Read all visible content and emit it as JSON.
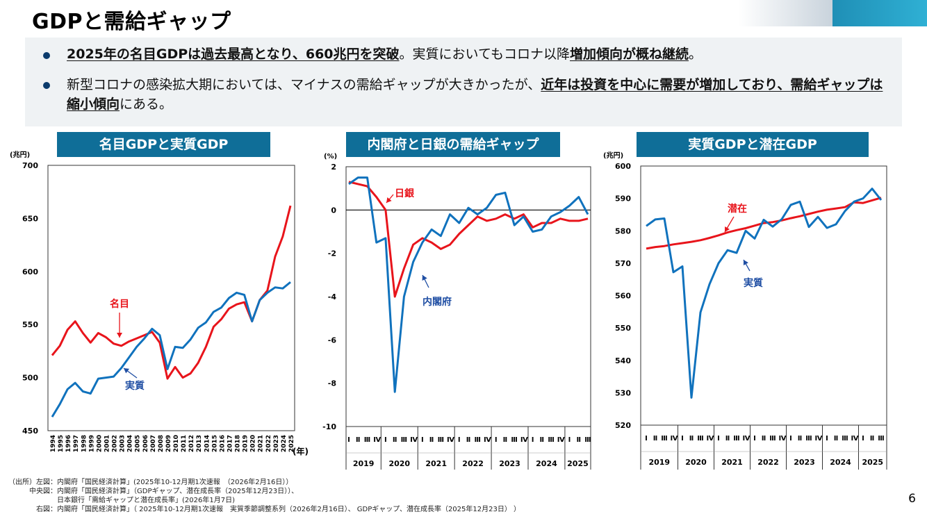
{
  "page": {
    "title": "GDPと需給ギャップ",
    "page_number": "6",
    "bullets": [
      {
        "strong1": "2025年の名目GDPは過去最高となり、660兆円を突破",
        "mid": "。実質においてもコロナ以降",
        "strong2": "増加傾向が概ね継続",
        "end": "。"
      },
      {
        "lead": "新型コロナの感染拡大期においては、マイナスの需給ギャップが大きかったが、",
        "strong": "近年は投資を中心に需要が増加しており、需給ギャップは縮小傾向",
        "end": "にある。"
      }
    ],
    "sources": [
      "（出所）左図：内閣府「国民経済計算」(2025年10-12月期1次速報　（2026年2月16日））",
      "　　　中央図：内閣府「国民経済計算」（GDPギャップ、潜在成長率（2025年12月23日））、",
      "　　　　　　　日本銀行「需給ギャップと潜在成長率」(2026年1月7日)",
      "　　　　右図：内閣府「国民経済計算」（ 2025年10-12月期1次速報　実質季節調整系列（2026年2月16日）、 GDPギャップ、潜在成長率（2025年12月23日） ）"
    ]
  },
  "colors": {
    "nominal": "#e8141b",
    "real": "#1072bd",
    "title_bg": "#0f6e98",
    "annot": "#1f4ea3"
  },
  "chart_data": [
    {
      "type": "line",
      "title": "名目GDPと実質GDP",
      "ylabel": "(兆円)",
      "xlabel": "(年)",
      "ylim": [
        450,
        700
      ],
      "yticks": [
        450,
        500,
        550,
        600,
        650,
        700
      ],
      "x": [
        "1994",
        "1995",
        "1996",
        "1997",
        "1998",
        "1999",
        "2000",
        "2001",
        "2002",
        "2003",
        "2004",
        "2005",
        "2006",
        "2007",
        "2008",
        "2009",
        "2010",
        "2011",
        "2012",
        "2013",
        "2014",
        "2015",
        "2016",
        "2017",
        "2018",
        "2019",
        "2020",
        "2021",
        "2022",
        "2023",
        "2024",
        "2025"
      ],
      "series": [
        {
          "name": "名目",
          "color_key": "nominal",
          "values": [
            521,
            530,
            545,
            553,
            542,
            533,
            542,
            538,
            532,
            530,
            534,
            537,
            540,
            543,
            533,
            499,
            510,
            500,
            504,
            514,
            529,
            548,
            555,
            565,
            569,
            571,
            553,
            573,
            582,
            614,
            633,
            662
          ]
        },
        {
          "name": "実質",
          "color_key": "real",
          "values": [
            463,
            475,
            489,
            495,
            487,
            485,
            499,
            500,
            501,
            509,
            519,
            529,
            537,
            546,
            540,
            508,
            529,
            528,
            536,
            547,
            552,
            562,
            566,
            575,
            580,
            578,
            553,
            573,
            580,
            585,
            584,
            590
          ]
        }
      ],
      "annotations": [
        {
          "text": "名目",
          "series": 0
        },
        {
          "text": "実質",
          "series": 1
        }
      ]
    },
    {
      "type": "line",
      "title": "内閣府と日銀の需給ギャップ",
      "ylabel": "(%)",
      "ylim": [
        -10,
        2
      ],
      "yticks": [
        2,
        0,
        -2,
        -4,
        -6,
        -8,
        -10
      ],
      "quarter_labels": [
        "Ⅰ",
        "Ⅱ",
        "Ⅲ",
        "Ⅳ"
      ],
      "years": [
        "2019",
        "2020",
        "2021",
        "2022",
        "2023",
        "2024",
        "2025"
      ],
      "quarters_per_year": [
        4,
        4,
        4,
        4,
        4,
        4,
        3
      ],
      "series": [
        {
          "name": "日銀",
          "color_key": "nominal",
          "values": [
            1.3,
            1.2,
            1.1,
            0.6,
            0.0,
            -4.0,
            -2.7,
            -1.6,
            -1.3,
            -1.5,
            -1.8,
            -1.6,
            -1.1,
            -0.7,
            -0.3,
            -0.5,
            -0.4,
            -0.2,
            -0.4,
            -0.2,
            -0.8,
            -0.6,
            -0.6,
            -0.4,
            -0.5,
            -0.5,
            -0.4
          ]
        },
        {
          "name": "内閣府",
          "color_key": "real",
          "values": [
            1.2,
            1.5,
            1.5,
            -1.5,
            -1.3,
            -8.4,
            -4.0,
            -2.4,
            -1.5,
            -0.9,
            -1.2,
            -0.2,
            -0.6,
            0.1,
            -0.2,
            0.1,
            0.7,
            0.8,
            -0.7,
            -0.3,
            -1.0,
            -0.9,
            -0.3,
            -0.1,
            0.2,
            0.6,
            -0.2
          ]
        }
      ],
      "annotations": [
        {
          "text": "日銀",
          "series": 0
        },
        {
          "text": "内閣府",
          "series": 1
        }
      ]
    },
    {
      "type": "line",
      "title": "実質GDPと潜在GDP",
      "ylabel": "(兆円)",
      "ylim": [
        520,
        600
      ],
      "yticks": [
        520,
        530,
        540,
        550,
        560,
        570,
        580,
        590,
        600
      ],
      "quarter_labels": [
        "Ⅰ",
        "Ⅱ",
        "Ⅲ",
        "Ⅳ"
      ],
      "years": [
        "2019",
        "2020",
        "2021",
        "2022",
        "2023",
        "2024",
        "2025"
      ],
      "quarters_per_year": [
        4,
        4,
        4,
        4,
        4,
        4,
        3
      ],
      "series": [
        {
          "name": "潜在",
          "color_key": "nominal",
          "values": [
            574.5,
            575.0,
            575.3,
            575.8,
            576.2,
            576.6,
            577.1,
            577.8,
            578.6,
            579.5,
            580.2,
            580.8,
            581.6,
            582.4,
            582.7,
            583.2,
            583.9,
            584.5,
            585.2,
            585.9,
            586.5,
            586.9,
            587.3,
            588.8,
            588.6,
            589.4,
            590.2
          ]
        },
        {
          "name": "実質",
          "color_key": "real",
          "values": [
            581.5,
            583.5,
            583.8,
            567.2,
            569.0,
            528.5,
            554.8,
            563.5,
            570.0,
            574.0,
            573.2,
            580.0,
            577.6,
            583.4,
            581.3,
            583.6,
            588.0,
            589.0,
            581.2,
            584.3,
            580.9,
            582.0,
            586.1,
            589.0,
            590.0,
            593.0,
            589.5
          ]
        }
      ],
      "annotations": [
        {
          "text": "潜在",
          "series": 0
        },
        {
          "text": "実質",
          "series": 1
        }
      ]
    }
  ]
}
